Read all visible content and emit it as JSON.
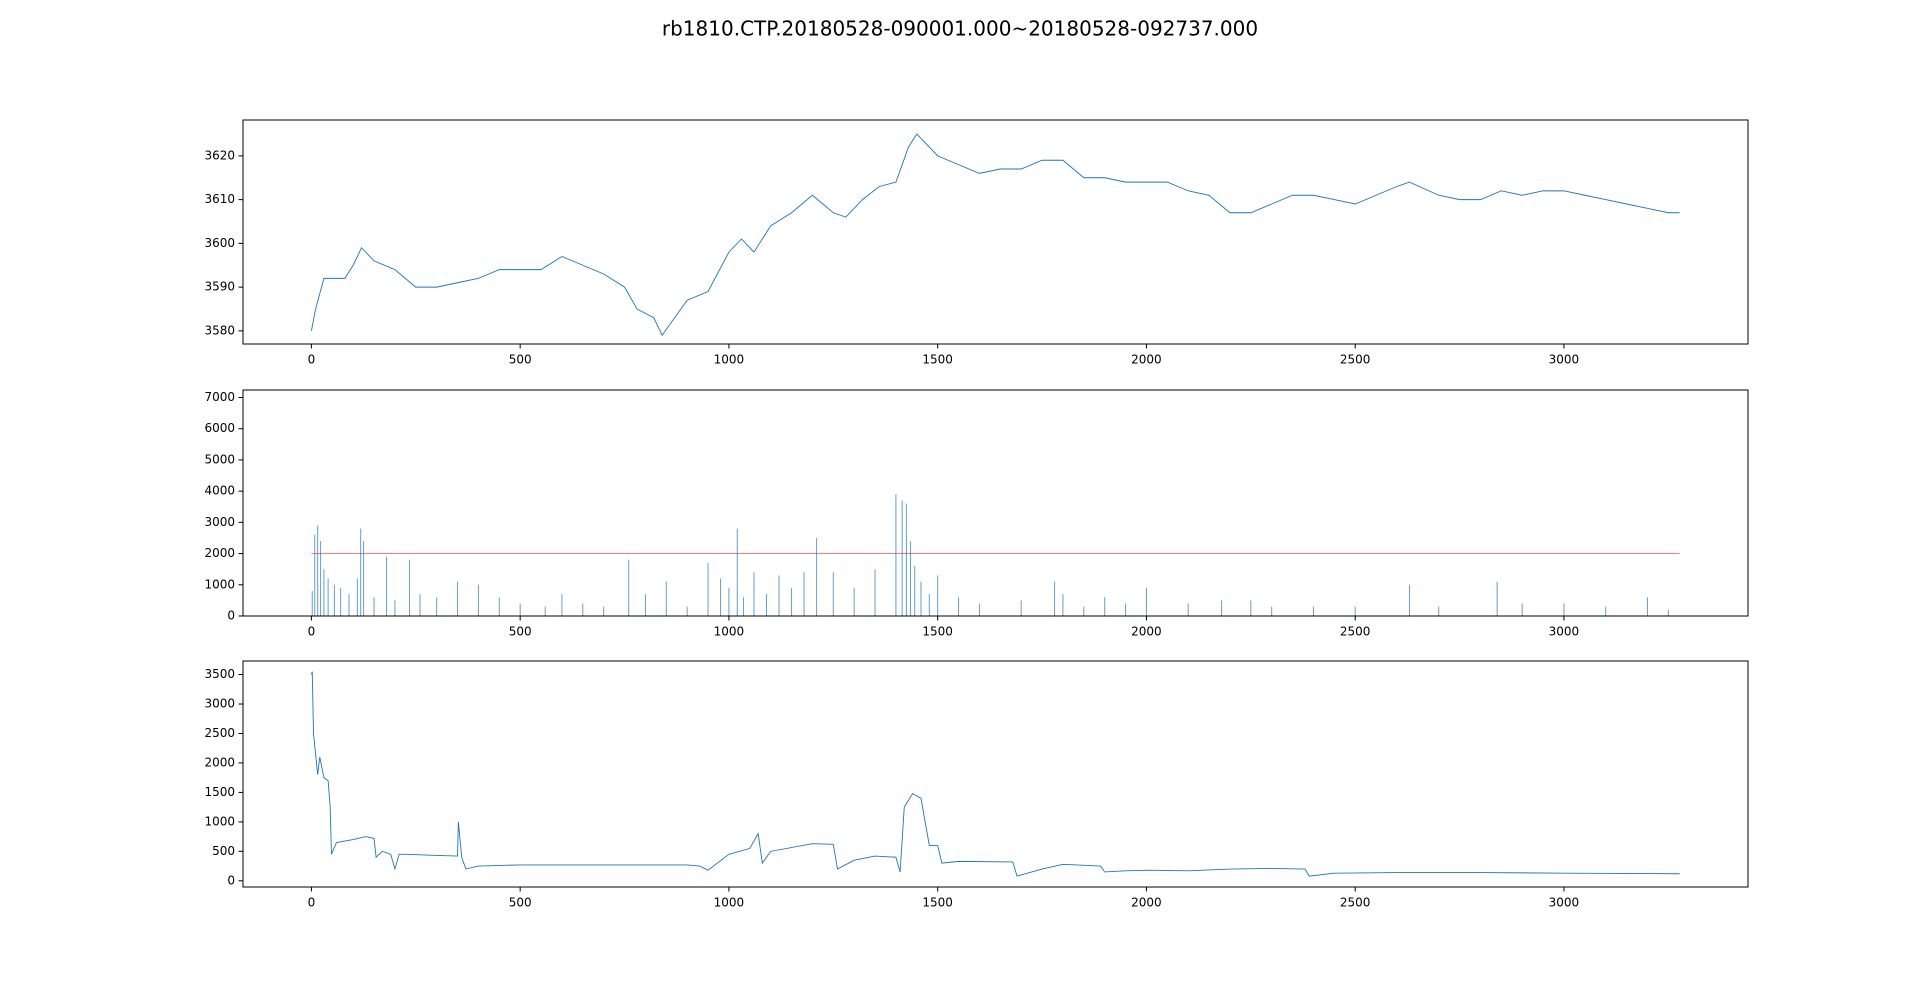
{
  "title": "rb1810.CTP.20180528-090001.000~20180528-092737.000",
  "chart_data": [
    {
      "type": "line",
      "xlim": [
        -163.85,
        3440.85
      ],
      "ylim": [
        3577,
        3628.2
      ],
      "xticks": [
        0,
        500,
        1000,
        1500,
        2000,
        2500,
        3000
      ],
      "yticks": [
        3580,
        3590,
        3600,
        3610,
        3620
      ],
      "series": [
        {
          "type": "line",
          "color": "#1f77b4",
          "x": [
            0,
            10,
            30,
            50,
            80,
            100,
            120,
            150,
            200,
            250,
            300,
            350,
            400,
            450,
            500,
            550,
            600,
            650,
            700,
            750,
            780,
            820,
            840,
            870,
            900,
            950,
            1000,
            1030,
            1060,
            1100,
            1150,
            1200,
            1250,
            1280,
            1320,
            1360,
            1400,
            1430,
            1450,
            1500,
            1550,
            1600,
            1650,
            1700,
            1750,
            1800,
            1850,
            1900,
            1950,
            2000,
            2050,
            2100,
            2150,
            2200,
            2250,
            2300,
            2350,
            2400,
            2450,
            2500,
            2550,
            2600,
            2630,
            2700,
            2750,
            2800,
            2850,
            2900,
            2950,
            3000,
            3050,
            3100,
            3150,
            3200,
            3250,
            3277
          ],
          "values": [
            3580,
            3585,
            3592,
            3592,
            3592,
            3595,
            3599,
            3596,
            3594,
            3590,
            3590,
            3591,
            3592,
            3594,
            3594,
            3594,
            3597,
            3595,
            3593,
            3590,
            3585,
            3583,
            3579,
            3583,
            3587,
            3589,
            3598,
            3601,
            3598,
            3604,
            3607,
            3611,
            3607,
            3606,
            3610,
            3613,
            3614,
            3622,
            3625,
            3620,
            3618,
            3616,
            3617,
            3617,
            3619,
            3619,
            3615,
            3615,
            3614,
            3614,
            3614,
            3612,
            3611,
            3607,
            3607,
            3609,
            3611,
            3611,
            3610,
            3609,
            3611,
            3613,
            3614,
            3611,
            3610,
            3610,
            3612,
            3611,
            3612,
            3612,
            3611,
            3610,
            3609,
            3608,
            3607,
            3607
          ]
        }
      ]
    },
    {
      "type": "bar",
      "xlim": [
        -163.85,
        3440.85
      ],
      "ylim": [
        0,
        7240
      ],
      "xticks": [
        0,
        500,
        1000,
        1500,
        2000,
        2500,
        3000
      ],
      "yticks": [
        0,
        1000,
        2000,
        3000,
        4000,
        5000,
        6000,
        7000
      ],
      "series": [
        {
          "type": "bar",
          "color": "#1f77b4",
          "x": [
            2,
            8,
            15,
            22,
            30,
            40,
            55,
            70,
            90,
            110,
            118,
            125,
            150,
            180,
            200,
            235,
            260,
            300,
            350,
            400,
            450,
            500,
            560,
            600,
            650,
            700,
            760,
            800,
            850,
            900,
            950,
            980,
            1000,
            1020,
            1035,
            1060,
            1090,
            1120,
            1150,
            1180,
            1210,
            1250,
            1300,
            1350,
            1400,
            1415,
            1425,
            1435,
            1445,
            1460,
            1480,
            1500,
            1550,
            1600,
            1700,
            1780,
            1800,
            1850,
            1900,
            1950,
            2000,
            2100,
            2180,
            2250,
            2300,
            2400,
            2500,
            2630,
            2700,
            2840,
            2900,
            3000,
            3100,
            3200,
            3250
          ],
          "values": [
            800,
            2600,
            2900,
            2400,
            1500,
            1200,
            1000,
            900,
            700,
            1200,
            2800,
            2400,
            600,
            1900,
            500,
            1800,
            700,
            600,
            1100,
            1000,
            600,
            400,
            300,
            700,
            400,
            300,
            1800,
            700,
            1100,
            300,
            1700,
            1200,
            900,
            2800,
            600,
            1400,
            700,
            1300,
            900,
            1400,
            2500,
            1400,
            900,
            1500,
            3900,
            3700,
            3600,
            2400,
            1600,
            1100,
            700,
            1300,
            600,
            400,
            500,
            1100,
            700,
            300,
            600,
            400,
            900,
            400,
            500,
            500,
            300,
            300,
            300,
            1000,
            300,
            1100,
            400,
            400,
            300,
            600,
            200
          ]
        },
        {
          "type": "line",
          "color": "#ff0000",
          "x": [
            0,
            3277
          ],
          "values": [
            2000,
            2000
          ]
        }
      ]
    },
    {
      "type": "line",
      "xlim": [
        -163.85,
        3440.85
      ],
      "ylim": [
        -105,
        3730
      ],
      "xticks": [
        0,
        500,
        1000,
        1500,
        2000,
        2500,
        3000
      ],
      "yticks": [
        0,
        500,
        1000,
        1500,
        2000,
        2500,
        3000,
        3500
      ],
      "series": [
        {
          "type": "line",
          "color": "#1f77b4",
          "x": [
            0,
            2,
            5,
            15,
            20,
            30,
            40,
            45,
            48,
            60,
            100,
            130,
            150,
            155,
            170,
            190,
            200,
            210,
            230,
            300,
            350,
            352,
            360,
            370,
            400,
            500,
            700,
            900,
            930,
            950,
            1000,
            1050,
            1070,
            1080,
            1100,
            1200,
            1250,
            1260,
            1300,
            1350,
            1400,
            1410,
            1420,
            1440,
            1460,
            1470,
            1480,
            1500,
            1510,
            1550,
            1680,
            1690,
            1750,
            1800,
            1890,
            1900,
            1950,
            2000,
            2100,
            2200,
            2300,
            2380,
            2390,
            2450,
            2600,
            2800,
            3000,
            3277
          ],
          "values": [
            3500,
            3550,
            2500,
            1800,
            2100,
            1750,
            1700,
            1250,
            450,
            650,
            700,
            750,
            720,
            400,
            500,
            450,
            200,
            450,
            450,
            430,
            420,
            1000,
            400,
            200,
            250,
            270,
            270,
            270,
            250,
            180,
            450,
            550,
            800,
            300,
            500,
            630,
            620,
            200,
            350,
            420,
            400,
            150,
            1250,
            1480,
            1400,
            1000,
            600,
            600,
            300,
            330,
            320,
            80,
            200,
            280,
            250,
            150,
            170,
            180,
            170,
            200,
            210,
            200,
            80,
            130,
            140,
            140,
            130,
            120
          ]
        }
      ]
    }
  ]
}
